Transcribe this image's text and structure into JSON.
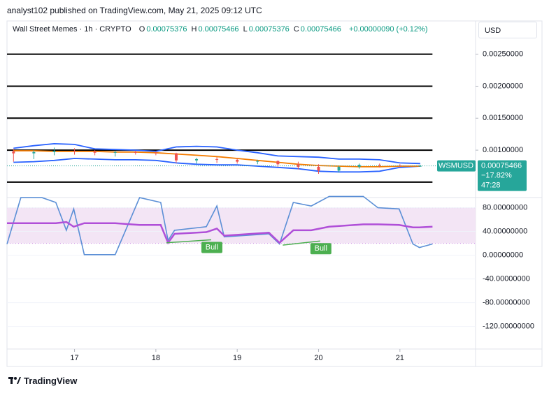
{
  "header": {
    "text": "analyst102 published on TradingView.com, May 21, 2025 09:12 UTC"
  },
  "legend": {
    "title": "Wall Street Memes · 1h · CRYPTO",
    "items": [
      {
        "label": "O",
        "value": "0.00075376"
      },
      {
        "label": "H",
        "value": "0.00075466"
      },
      {
        "label": "L",
        "value": "0.00075376"
      },
      {
        "label": "C",
        "value": "0.00075466"
      }
    ],
    "change": "+0.00000090 (+0.12%)"
  },
  "currency": "USD",
  "footer": {
    "brand": "TradingView"
  },
  "last_price": {
    "symbol": "WSMUSD",
    "value_label": "0.00075466",
    "change": "−17.82%",
    "countdown": "47:28"
  },
  "chart_data": [
    {
      "type": "candlestick",
      "x": [
        16.25,
        16.5,
        16.75,
        17.0,
        17.25,
        17.5,
        17.75,
        18.0,
        18.25,
        18.5,
        18.75,
        19.0,
        19.25,
        19.5,
        19.75,
        20.0,
        20.25,
        20.5,
        20.75,
        21.0,
        21.25
      ],
      "open": [
        0.00098,
        0.00095,
        0.00097,
        0.00099,
        0.00098,
        0.00096,
        0.00097,
        0.00096,
        0.00095,
        0.00084,
        0.00086,
        0.00085,
        0.00082,
        0.00083,
        0.00078,
        0.00074,
        0.00068,
        0.00074,
        0.00077,
        0.00076,
        0.00075
      ],
      "high": [
        0.00102,
        0.001,
        0.00104,
        0.00103,
        0.001,
        0.00099,
        0.00099,
        0.00098,
        0.00096,
        0.00088,
        0.00089,
        0.00087,
        0.00085,
        0.00084,
        0.00082,
        0.00078,
        0.00076,
        0.00079,
        0.00079,
        0.00078,
        0.00077
      ],
      "low": [
        0.00082,
        0.00086,
        0.00092,
        0.00093,
        0.00092,
        0.0009,
        0.00093,
        0.00092,
        0.0008,
        0.00079,
        0.0008,
        0.00079,
        0.00078,
        0.00074,
        0.0007,
        0.00063,
        0.00065,
        0.00071,
        0.00073,
        0.00073,
        0.00074
      ],
      "close": [
        0.00095,
        0.00097,
        0.00099,
        0.00098,
        0.00096,
        0.00097,
        0.00096,
        0.00095,
        0.00084,
        0.00086,
        0.00085,
        0.00082,
        0.00083,
        0.00078,
        0.00074,
        0.00068,
        0.00074,
        0.00077,
        0.00076,
        0.00075,
        0.00075466
      ],
      "up_color": "#26a69a",
      "down_color": "#ef5350",
      "overlays": [
        {
          "color": "#2962ff",
          "values": [
            0.00103,
            0.00107,
            0.0011,
            0.00109,
            0.00102,
            0.00101,
            0.001,
            0.00098,
            0.00105,
            0.00106,
            0.00105,
            0.001,
            0.00096,
            0.00091,
            0.0009,
            0.00089,
            0.00086,
            0.00086,
            0.00085,
            0.0008,
            0.00079
          ]
        },
        {
          "color": "#2962ff",
          "values": [
            0.00081,
            0.00082,
            0.00084,
            0.00087,
            0.00086,
            0.00085,
            0.00085,
            0.00084,
            0.0008,
            0.00078,
            0.00077,
            0.00077,
            0.00075,
            0.00073,
            0.00071,
            0.00067,
            0.00066,
            0.00066,
            0.00067,
            0.00073,
            0.00075
          ]
        },
        {
          "color": "#f57c00",
          "values": [
            0.00099,
            0.00099,
            0.00098,
            0.00098,
            0.00098,
            0.00097,
            0.00097,
            0.00096,
            0.00094,
            0.00092,
            0.0009,
            0.00087,
            0.00084,
            0.00081,
            0.00078,
            0.00076,
            0.00075,
            0.00074,
            0.00074,
            0.00075,
            0.00075
          ]
        }
      ],
      "levels": [
        0.0025,
        0.002,
        0.0015,
        0.001,
        0.0005
      ],
      "level_color": "#000000",
      "xlim": [
        16.17,
        21.93
      ],
      "ylim": [
        0.00027,
        0.00302
      ],
      "yticks": [
        {
          "value": 0.0025,
          "label": "0.00250000"
        },
        {
          "value": 0.002,
          "label": "0.00200000"
        },
        {
          "value": 0.0015,
          "label": "0.00150000"
        },
        {
          "value": 0.001,
          "label": "0.00100000"
        }
      ]
    },
    {
      "type": "line",
      "x": [
        16.17,
        16.34,
        16.6,
        16.77,
        16.9,
        16.99,
        17.12,
        17.5,
        17.8,
        18.06,
        18.15,
        18.23,
        18.62,
        18.75,
        18.84,
        19.39,
        19.52,
        19.69,
        19.91,
        20.13,
        20.55,
        20.73,
        20.99,
        21.16,
        21.24,
        21.4
      ],
      "series": [
        {
          "color": "#5b8fd6",
          "values": [
            18.8,
            97,
            97,
            89,
            42,
            78,
            1,
            1,
            97,
            89,
            25,
            42,
            48,
            83,
            31,
            36,
            19,
            89,
            83,
            99,
            99,
            80,
            78,
            19,
            13,
            19
          ]
        },
        {
          "color": "#b04fd8",
          "values": [
            54,
            54,
            54,
            54,
            56,
            48,
            54,
            54,
            51,
            51,
            21,
            36,
            39,
            45,
            33,
            38,
            21,
            42,
            42,
            48,
            52,
            52,
            51,
            47,
            47,
            48
          ]
        }
      ],
      "band": [
        20,
        80
      ],
      "band_color": "#f3e5f5",
      "annotations": [
        {
          "text": "Bull",
          "x": [
            18.13,
            18.68
          ],
          "y": [
            21,
            26
          ],
          "color": "#4caf50"
        },
        {
          "text": "Bull",
          "x": [
            19.56,
            20.02
          ],
          "y": [
            17,
            24
          ],
          "color": "#4caf50"
        }
      ],
      "xlim": [
        16.17,
        21.93
      ],
      "ylim": [
        -158,
        96
      ],
      "xticks": [
        17,
        18,
        19,
        20,
        21
      ],
      "yticks": [
        {
          "value": 80,
          "label": "80.00000000"
        },
        {
          "value": 40,
          "label": "40.00000000"
        },
        {
          "value": 0,
          "label": "0.00000000"
        },
        {
          "value": -40,
          "label": "-40.00000000"
        },
        {
          "value": -80,
          "label": "-80.00000000"
        },
        {
          "value": -120,
          "label": "-120.00000000"
        }
      ]
    }
  ]
}
